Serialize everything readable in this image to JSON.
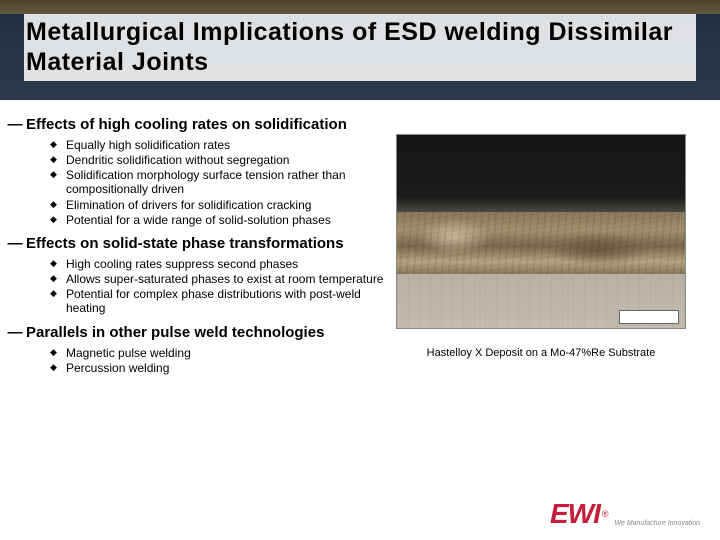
{
  "title": "Metallurgical Implications of ESD welding Dissimilar Material Joints",
  "sections": [
    {
      "heading": "Effects of high cooling rates on solidification",
      "items": [
        "Equally high solidification rates",
        "Dendritic solidification without segregation",
        "Solidification morphology surface tension rather than compositionally driven",
        "Elimination of drivers for solidification cracking",
        "Potential for a wide range of solid-solution phases"
      ]
    },
    {
      "heading": "Effects on solid-state phase transformations",
      "items": [
        "High cooling rates suppress second phases",
        "Allows super-saturated phases to exist at room temperature",
        "Potential for complex phase distributions with post-weld heating"
      ]
    },
    {
      "heading": "Parallels in other pulse weld technologies",
      "items": [
        "Magnetic pulse welding",
        "Percussion welding"
      ]
    }
  ],
  "figure": {
    "caption": "Hastelloy X Deposit on a Mo-47%Re Substrate",
    "top_color": "#151515",
    "mid_color": "#8a7a5e",
    "bot_color": "#c2bbae"
  },
  "logo": {
    "mark": "EWI",
    "reg": "®",
    "tagline": "We Manufacture Innovation"
  }
}
